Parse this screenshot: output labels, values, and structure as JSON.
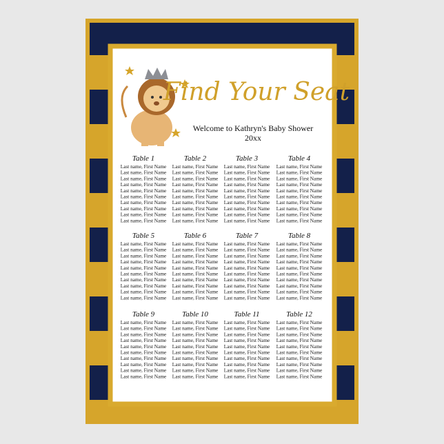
{
  "poster": {
    "title": "Find Your Seat",
    "subtitle": "Welcome to Kathryn's Baby Shower",
    "year": "20xx",
    "tables": [
      {
        "name": "Table 1",
        "guests": [
          "Last name, First Name",
          "Last name, First Name",
          "Last name, First Name",
          "Last name, First Name",
          "Last name, First Name",
          "Last name, First Name",
          "Last name, First Name",
          "Last name, First Name",
          "Last name, First Name",
          "Last name, First Name"
        ]
      },
      {
        "name": "Table 2",
        "guests": [
          "Last name, First Name",
          "Last name, First Name",
          "Last name, First Name",
          "Last name, First Name",
          "Last name, First Name",
          "Last name, First Name",
          "Last name, First Name",
          "Last name, First Name",
          "Last name, First Name",
          "Last name, First Name"
        ]
      },
      {
        "name": "Table 3",
        "guests": [
          "Last name, First Name",
          "Last name, First Name",
          "Last name, First Name",
          "Last name, First Name",
          "Last name, First Name",
          "Last name, First Name",
          "Last name, First Name",
          "Last name, First Name",
          "Last name, First Name",
          "Last name, First Name"
        ]
      },
      {
        "name": "Table 4",
        "guests": [
          "Last name, First Name",
          "Last name, First Name",
          "Last name, First Name",
          "Last name, First Name",
          "Last name, First Name",
          "Last name, First Name",
          "Last name, First Name",
          "Last name, First Name",
          "Last name, First Name",
          "Last name, First Name"
        ]
      },
      {
        "name": "Table 5",
        "guests": [
          "Last name, First Name",
          "Last name, First Name",
          "Last name, First Name",
          "Last name, First Name",
          "Last name, First Name",
          "Last name, First Name",
          "Last name, First Name",
          "Last name, First Name",
          "Last name, First Name",
          "Last name, First Name"
        ]
      },
      {
        "name": "Table 6",
        "guests": [
          "Last name, First Name",
          "Last name, First Name",
          "Last name, First Name",
          "Last name, First Name",
          "Last name, First Name",
          "Last name, First Name",
          "Last name, First Name",
          "Last name, First Name",
          "Last name, First Name",
          "Last name, First Name"
        ]
      },
      {
        "name": "Table 7",
        "guests": [
          "Last name, First Name",
          "Last name, First Name",
          "Last name, First Name",
          "Last name, First Name",
          "Last name, First Name",
          "Last name, First Name",
          "Last name, First Name",
          "Last name, First Name",
          "Last name, First Name",
          "Last name, First Name"
        ]
      },
      {
        "name": "Table 8",
        "guests": [
          "Last name, First Name",
          "Last name, First Name",
          "Last name, First Name",
          "Last name, First Name",
          "Last name, First Name",
          "Last name, First Name",
          "Last name, First Name",
          "Last name, First Name",
          "Last name, First Name",
          "Last name, First Name"
        ]
      },
      {
        "name": "Table 9",
        "guests": [
          "Last name, First Name",
          "Last name, First Name",
          "Last name, First Name",
          "Last name, First Name",
          "Last name, First Name",
          "Last name, First Name",
          "Last name, First Name",
          "Last name, First Name",
          "Last name, First Name",
          "Last name, First Name"
        ]
      },
      {
        "name": "Table 10",
        "guests": [
          "Last name, First Name",
          "Last name, First Name",
          "Last name, First Name",
          "Last name, First Name",
          "Last name, First Name",
          "Last name, First Name",
          "Last name, First Name",
          "Last name, First Name",
          "Last name, First Name",
          "Last name, First Name"
        ]
      },
      {
        "name": "Table 11",
        "guests": [
          "Last name, First Name",
          "Last name, First Name",
          "Last name, First Name",
          "Last name, First Name",
          "Last name, First Name",
          "Last name, First Name",
          "Last name, First Name",
          "Last name, First Name",
          "Last name, First Name",
          "Last name, First Name"
        ]
      },
      {
        "name": "Table 12",
        "guests": [
          "Last name, First Name",
          "Last name, First Name",
          "Last name, First Name",
          "Last name, First Name",
          "Last name, First Name",
          "Last name, First Name",
          "Last name, First Name",
          "Last name, First Name",
          "Last name, First Name",
          "Last name, First Name"
        ]
      }
    ]
  }
}
